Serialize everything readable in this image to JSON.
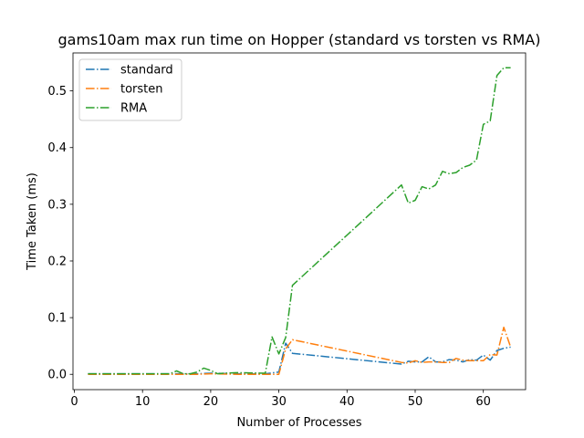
{
  "chart_data": {
    "type": "line",
    "title": "gams10am max run time on Hopper (standard vs torsten vs RMA)",
    "xlabel": "Number of Processes",
    "ylabel": "Time Taken (ms)",
    "xlim": [
      -0.2,
      66.2
    ],
    "ylim": [
      -0.027,
      0.567
    ],
    "xticks": [
      0,
      10,
      20,
      30,
      40,
      50,
      60
    ],
    "yticks": [
      0.0,
      0.1,
      0.2,
      0.3,
      0.4,
      0.5
    ],
    "ytick_labels": [
      "0.0",
      "0.1",
      "0.2",
      "0.3",
      "0.4",
      "0.5"
    ],
    "grid": false,
    "legend_position": "upper-left",
    "series": [
      {
        "name": "standard",
        "color": "#1f77b4",
        "x": [
          2,
          4,
          8,
          16,
          18,
          20,
          24,
          28,
          30,
          31,
          32,
          48,
          49,
          50,
          51,
          52,
          53,
          54,
          55,
          56,
          57,
          58,
          59,
          60,
          61,
          62,
          63,
          64
        ],
        "y": [
          0.001,
          0.001,
          0.001,
          0.001,
          0.001,
          0.002,
          0.001,
          0.001,
          0.004,
          0.055,
          0.037,
          0.018,
          0.023,
          0.022,
          0.022,
          0.031,
          0.022,
          0.022,
          0.026,
          0.025,
          0.022,
          0.026,
          0.025,
          0.034,
          0.025,
          0.042,
          0.046,
          0.048
        ]
      },
      {
        "name": "torsten",
        "color": "#ff7f0e",
        "x": [
          2,
          4,
          8,
          16,
          18,
          20,
          24,
          28,
          30,
          31,
          32,
          48,
          49,
          50,
          51,
          52,
          53,
          54,
          55,
          56,
          57,
          58,
          59,
          60,
          61,
          62,
          63,
          64
        ],
        "y": [
          0.0,
          0.0,
          0.0,
          0.0,
          0.0,
          0.001,
          0.0,
          0.0,
          0.0,
          0.045,
          0.061,
          0.021,
          0.02,
          0.024,
          0.021,
          0.022,
          0.022,
          0.021,
          0.021,
          0.028,
          0.025,
          0.024,
          0.024,
          0.024,
          0.035,
          0.034,
          0.083,
          0.048
        ]
      },
      {
        "name": "RMA",
        "color": "#2ca02c",
        "x": [
          2,
          4,
          8,
          14,
          15,
          16,
          17,
          18,
          19,
          20,
          21,
          22,
          24,
          28,
          29,
          30,
          31,
          32,
          48,
          49,
          50,
          51,
          52,
          53,
          54,
          55,
          56,
          57,
          58,
          59,
          60,
          61,
          62,
          63,
          64
        ],
        "y": [
          0.001,
          0.001,
          0.001,
          0.001,
          0.006,
          0.001,
          0.001,
          0.004,
          0.011,
          0.007,
          0.001,
          0.002,
          0.003,
          0.002,
          0.066,
          0.036,
          0.065,
          0.157,
          0.334,
          0.302,
          0.307,
          0.331,
          0.327,
          0.334,
          0.358,
          0.354,
          0.356,
          0.365,
          0.369,
          0.378,
          0.441,
          0.447,
          0.527,
          0.541,
          0.541
        ]
      }
    ]
  }
}
